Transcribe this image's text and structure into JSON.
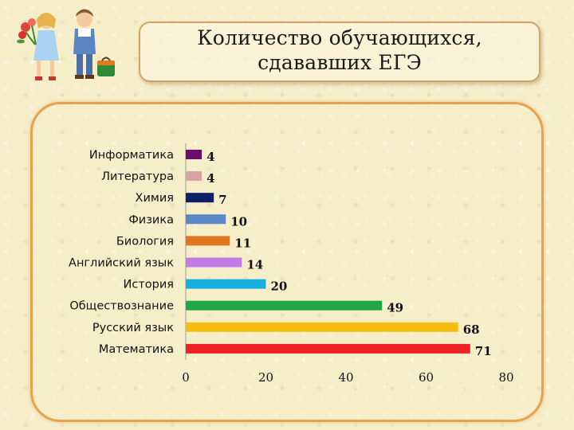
{
  "title": {
    "line1": "Количество обучающихся,",
    "line2": "сдававших ЕГЭ"
  },
  "illustration": {
    "icon": "schoolchildren-with-flowers-and-briefcase"
  },
  "chart_data": {
    "type": "bar",
    "orientation": "horizontal",
    "categories": [
      "Информатика",
      "Литература",
      "Химия",
      "Физика",
      "Биология",
      "Английский язык",
      "История",
      "Обществознание",
      "Русский язык",
      "Математика"
    ],
    "values": [
      4,
      4,
      7,
      10,
      11,
      14,
      20,
      49,
      68,
      71
    ],
    "colors": [
      "#6b0f6b",
      "#d9a3a3",
      "#0d2266",
      "#5b86c7",
      "#e0761e",
      "#c27ae6",
      "#17aee0",
      "#21a64a",
      "#f7bd10",
      "#ee2222"
    ],
    "x_ticks": [
      0,
      20,
      40,
      60,
      80
    ],
    "xlim": [
      0,
      80
    ],
    "data_labels": true,
    "legend": "none",
    "grid": false
  }
}
